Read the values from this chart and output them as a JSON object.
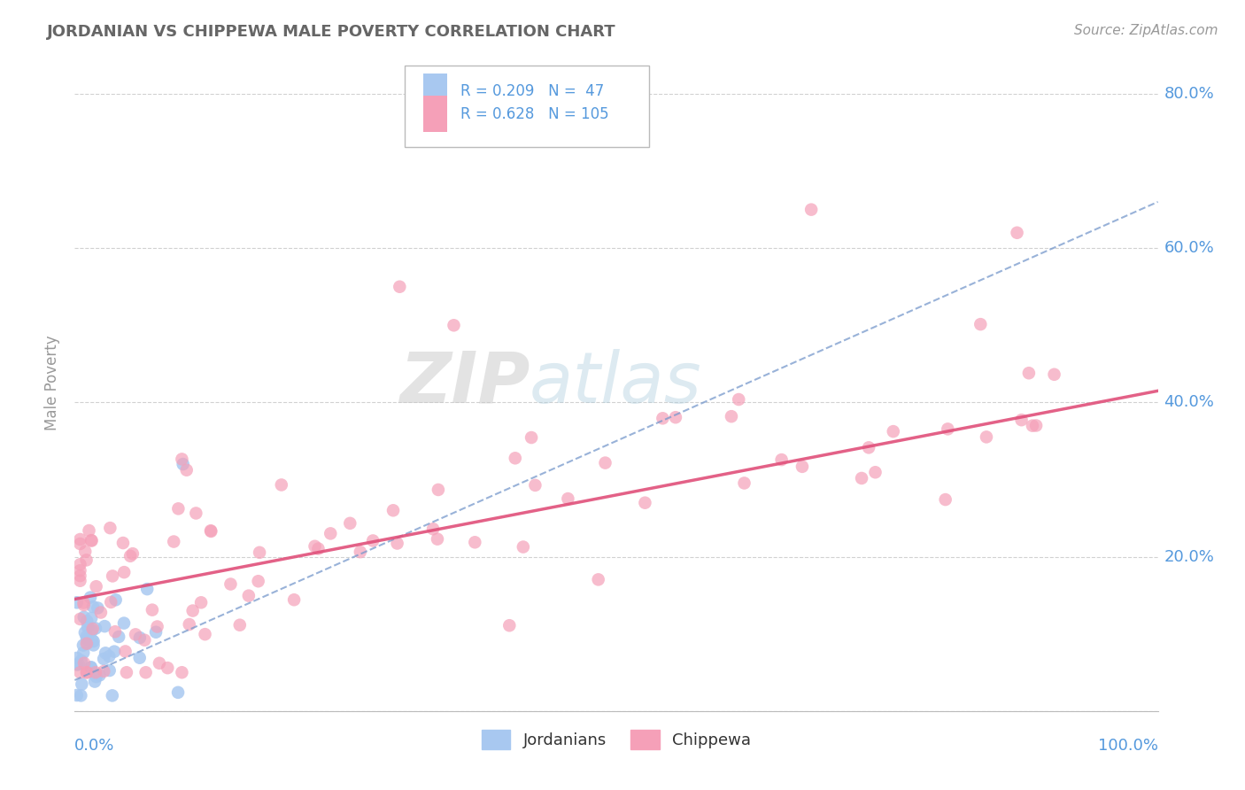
{
  "title": "JORDANIAN VS CHIPPEWA MALE POVERTY CORRELATION CHART",
  "source": "Source: ZipAtlas.com",
  "ylabel": "Male Poverty",
  "r_jordanian": 0.209,
  "n_jordanian": 47,
  "r_chippewa": 0.628,
  "n_chippewa": 105,
  "jordanian_color": "#a8c8f0",
  "chippewa_color": "#f5a0b8",
  "jordanian_line_color": "#7799cc",
  "chippewa_line_color": "#e0507a",
  "grid_color": "#cccccc",
  "background_color": "#ffffff",
  "title_color": "#666666",
  "axis_label_color": "#5599dd",
  "watermark_zip": "#cccccc",
  "watermark_atlas": "#aaccee",
  "ylim": [
    0.0,
    0.85
  ],
  "xlim": [
    0.0,
    1.0
  ],
  "chippewa_line_x0": 0.0,
  "chippewa_line_y0": 0.145,
  "chippewa_line_x1": 1.0,
  "chippewa_line_y1": 0.415,
  "jordanian_line_x0": 0.0,
  "jordanian_line_y0": 0.04,
  "jordanian_line_x1": 1.0,
  "jordanian_line_y1": 0.66
}
